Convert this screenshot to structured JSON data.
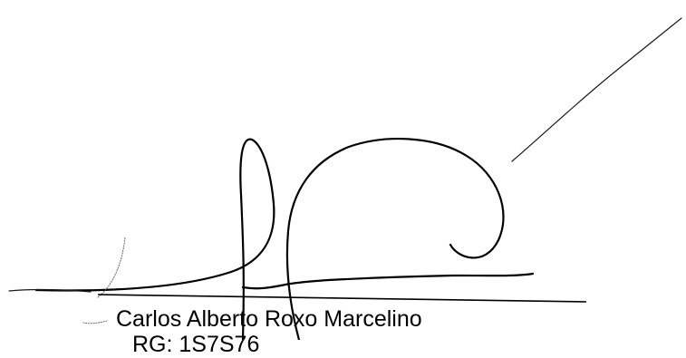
{
  "signature_block": {
    "signer_name": "Carlos Alberto Roxo Marcelino",
    "signer_id": "RG: 1S7S76"
  },
  "colors": {
    "ink": "#000000",
    "background": "#ffffff"
  }
}
